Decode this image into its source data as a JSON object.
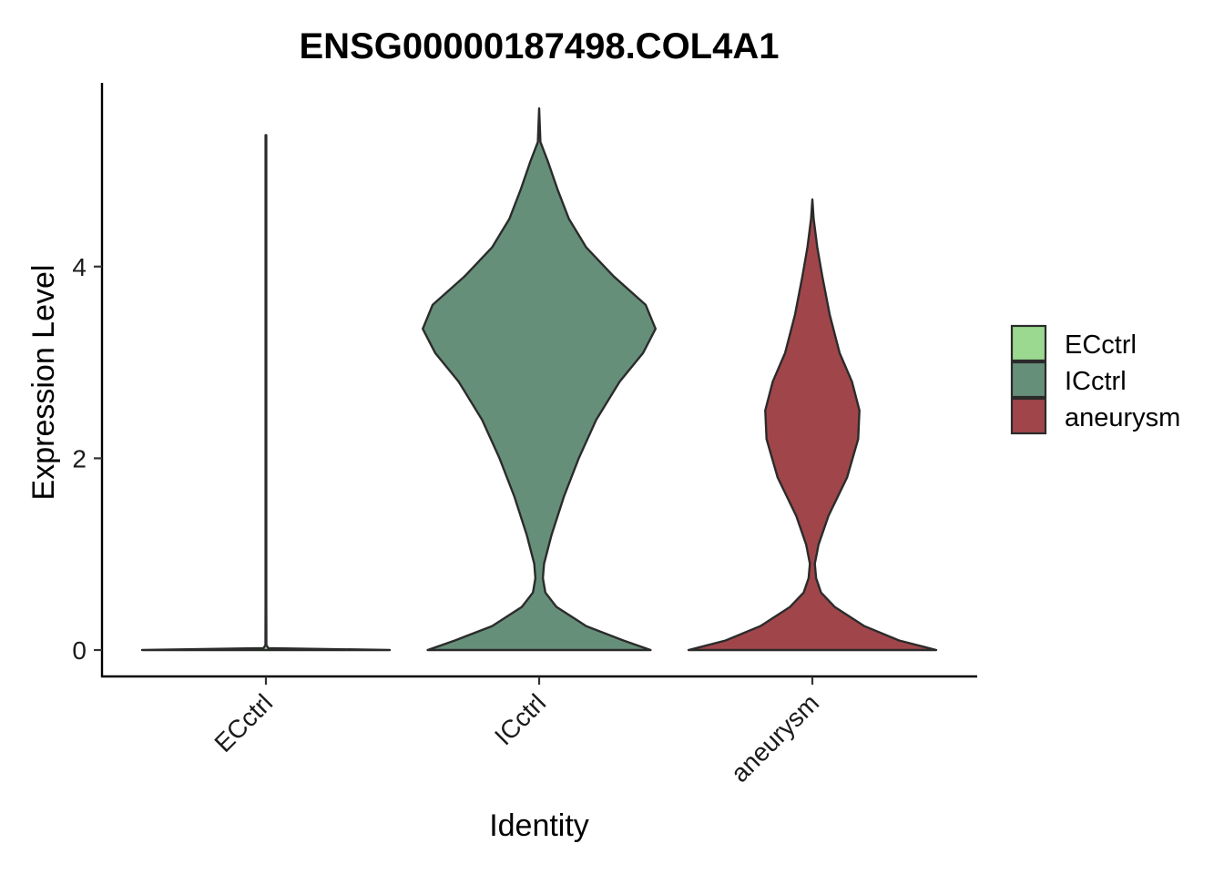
{
  "chart_data": {
    "type": "violin",
    "title": "ENSG00000187498.COL4A1",
    "xlabel": "Identity",
    "ylabel": "Expression Level",
    "ylim": [
      -0.3,
      5.8
    ],
    "yticks": [
      0,
      2,
      4
    ],
    "categories": [
      "ECctrl",
      "ICctrl",
      "aneurysm"
    ],
    "grid": false,
    "legend_position": "right",
    "legend": [
      {
        "label": "ECctrl",
        "color": "#9AD98F"
      },
      {
        "label": "ICctrl",
        "color": "#668F7A"
      },
      {
        "label": "aneurysm",
        "color": "#A0464B"
      }
    ],
    "series": [
      {
        "category": "ECctrl",
        "color": "#9AD98F",
        "min": 0,
        "max": 5.37,
        "density": [
          [
            0,
            1.0
          ],
          [
            0.02,
            0.02
          ],
          [
            0.05,
            0.004
          ],
          [
            0.5,
            0.003
          ],
          [
            1.0,
            0.003
          ],
          [
            2.0,
            0.003
          ],
          [
            3.0,
            0.003
          ],
          [
            4.0,
            0.003
          ],
          [
            5.0,
            0.003
          ],
          [
            5.37,
            0.003
          ]
        ]
      },
      {
        "category": "ICctrl",
        "color": "#668F7A",
        "min": 0,
        "max": 5.65,
        "density": [
          [
            0,
            0.9
          ],
          [
            0.1,
            0.68
          ],
          [
            0.25,
            0.38
          ],
          [
            0.45,
            0.14
          ],
          [
            0.6,
            0.05
          ],
          [
            0.75,
            0.03
          ],
          [
            0.9,
            0.04
          ],
          [
            1.2,
            0.1
          ],
          [
            1.6,
            0.2
          ],
          [
            2.0,
            0.32
          ],
          [
            2.4,
            0.46
          ],
          [
            2.8,
            0.65
          ],
          [
            3.1,
            0.84
          ],
          [
            3.35,
            0.94
          ],
          [
            3.6,
            0.86
          ],
          [
            3.9,
            0.6
          ],
          [
            4.2,
            0.38
          ],
          [
            4.5,
            0.24
          ],
          [
            4.8,
            0.15
          ],
          [
            5.1,
            0.07
          ],
          [
            5.3,
            0.01
          ],
          [
            5.65,
            0.0
          ]
        ]
      },
      {
        "category": "aneurysm",
        "color": "#A0464B",
        "min": 0,
        "max": 4.7,
        "density": [
          [
            0,
            1.0
          ],
          [
            0.1,
            0.7
          ],
          [
            0.25,
            0.42
          ],
          [
            0.45,
            0.18
          ],
          [
            0.6,
            0.07
          ],
          [
            0.75,
            0.03
          ],
          [
            0.9,
            0.02
          ],
          [
            1.1,
            0.05
          ],
          [
            1.4,
            0.13
          ],
          [
            1.8,
            0.28
          ],
          [
            2.2,
            0.37
          ],
          [
            2.5,
            0.38
          ],
          [
            2.8,
            0.32
          ],
          [
            3.1,
            0.22
          ],
          [
            3.5,
            0.14
          ],
          [
            3.9,
            0.08
          ],
          [
            4.2,
            0.04
          ],
          [
            4.5,
            0.01
          ],
          [
            4.7,
            0.0
          ]
        ]
      }
    ]
  }
}
